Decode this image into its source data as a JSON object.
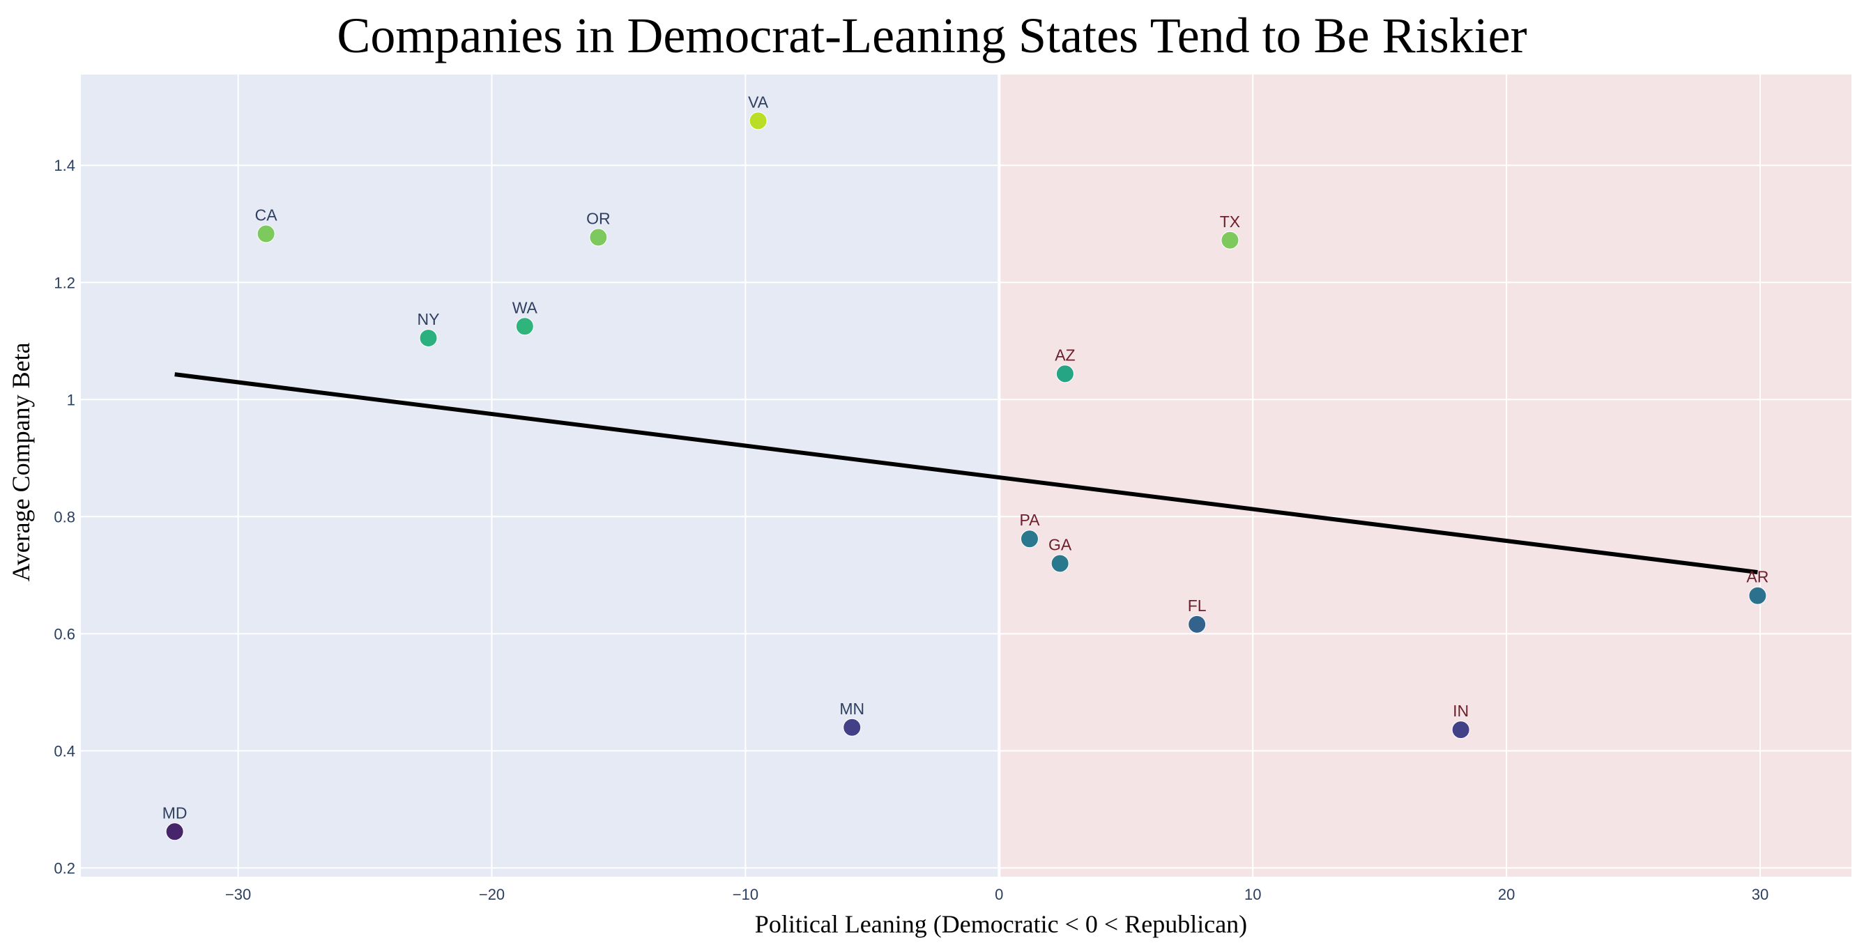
{
  "chart_data": {
    "type": "scatter",
    "title": "Companies in Democrat-Leaning States Tend to Be Riskier",
    "xlabel": "Political Leaning (Democratic < 0 < Republican)",
    "ylabel": "Average Company Beta",
    "xlim": [
      -36.2,
      33.6
    ],
    "ylim": [
      0.185,
      1.555
    ],
    "xticks": [
      -30,
      -20,
      -10,
      0,
      10,
      20,
      30
    ],
    "xtick_labels": [
      "−30",
      "−20",
      "−10",
      "0",
      "10",
      "20",
      "30"
    ],
    "yticks": [
      0.2,
      0.4,
      0.6,
      0.8,
      1.0,
      1.2,
      1.4
    ],
    "ytick_labels": [
      "0.2",
      "0.4",
      "0.6",
      "0.8",
      "1",
      "1.2",
      "1.4"
    ],
    "grid": true,
    "background_regions": [
      {
        "from": -36.2,
        "to": 0,
        "color": "#e5eaf4"
      },
      {
        "from": 0,
        "to": 33.6,
        "color": "#f5e4e6"
      }
    ],
    "points": [
      {
        "label": "MD",
        "x": -32.5,
        "y": 0.262,
        "color": "#46256b",
        "label_color": "#2f3f5f"
      },
      {
        "label": "CA",
        "x": -28.9,
        "y": 1.283,
        "color": "#7dc95e",
        "label_color": "#2f3f5f"
      },
      {
        "label": "NY",
        "x": -22.5,
        "y": 1.105,
        "color": "#2bb07f",
        "label_color": "#2f3f5f"
      },
      {
        "label": "WA",
        "x": -18.7,
        "y": 1.125,
        "color": "#2fb47c",
        "label_color": "#2f3f5f"
      },
      {
        "label": "OR",
        "x": -15.8,
        "y": 1.277,
        "color": "#7dc95e",
        "label_color": "#2f3f5f"
      },
      {
        "label": "VA",
        "x": -9.5,
        "y": 1.476,
        "color": "#bade28",
        "label_color": "#2f3f5f"
      },
      {
        "label": "MN",
        "x": -5.8,
        "y": 0.44,
        "color": "#424086",
        "label_color": "#2f3f5f"
      },
      {
        "label": "PA",
        "x": 1.2,
        "y": 0.762,
        "color": "#2a788e",
        "label_color": "#6b1f2a"
      },
      {
        "label": "GA",
        "x": 2.4,
        "y": 0.72,
        "color": "#2a788e",
        "label_color": "#6b1f2a"
      },
      {
        "label": "AZ",
        "x": 2.6,
        "y": 1.044,
        "color": "#25a584",
        "label_color": "#6b1f2a"
      },
      {
        "label": "FL",
        "x": 7.8,
        "y": 0.616,
        "color": "#33638d",
        "label_color": "#6b1f2a"
      },
      {
        "label": "TX",
        "x": 9.1,
        "y": 1.272,
        "color": "#7dc95e",
        "label_color": "#6b1f2a"
      },
      {
        "label": "IN",
        "x": 18.2,
        "y": 0.436,
        "color": "#424086",
        "label_color": "#6b1f2a"
      },
      {
        "label": "AR",
        "x": 29.9,
        "y": 0.665,
        "color": "#2c728e",
        "label_color": "#6b1f2a"
      }
    ],
    "trend_line": {
      "x": [
        -32.5,
        29.9
      ],
      "y": [
        1.043,
        0.705
      ],
      "color": "#000000"
    }
  }
}
